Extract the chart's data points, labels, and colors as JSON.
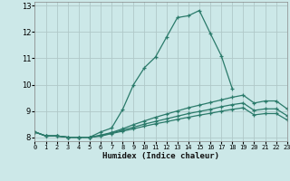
{
  "title": "",
  "xlabel": "Humidex (Indice chaleur)",
  "bg_color": "#cce8e8",
  "grid_color": "#b0c8c8",
  "line_color": "#2a7a6a",
  "xlim": [
    0,
    23
  ],
  "ylim": [
    7.85,
    13.15
  ],
  "xticks": [
    0,
    1,
    2,
    3,
    4,
    5,
    6,
    7,
    8,
    9,
    10,
    11,
    12,
    13,
    14,
    15,
    16,
    17,
    18,
    19,
    20,
    21,
    22,
    23
  ],
  "yticks": [
    8,
    9,
    10,
    11,
    12,
    13
  ],
  "lines": [
    {
      "x": [
        0,
        1,
        2,
        3,
        4,
        5,
        6,
        7,
        8,
        9,
        10,
        11,
        12,
        13,
        14,
        15,
        16,
        17,
        18
      ],
      "y": [
        8.2,
        8.05,
        8.05,
        8.0,
        8.0,
        8.0,
        8.2,
        8.35,
        9.05,
        10.0,
        10.65,
        11.05,
        11.8,
        12.55,
        12.62,
        12.82,
        11.95,
        11.1,
        9.85
      ]
    },
    {
      "x": [
        0,
        1,
        2,
        3,
        4,
        5,
        6,
        7,
        8,
        9,
        10,
        11,
        12,
        13,
        14,
        15,
        16,
        17,
        18,
        19,
        20,
        21,
        22,
        23
      ],
      "y": [
        8.2,
        8.05,
        8.05,
        8.0,
        8.0,
        8.0,
        8.08,
        8.18,
        8.32,
        8.48,
        8.62,
        8.76,
        8.88,
        9.0,
        9.12,
        9.22,
        9.32,
        9.42,
        9.52,
        9.6,
        9.3,
        9.38,
        9.38,
        9.08
      ]
    },
    {
      "x": [
        0,
        1,
        2,
        3,
        4,
        5,
        6,
        7,
        8,
        9,
        10,
        11,
        12,
        13,
        14,
        15,
        16,
        17,
        18,
        19,
        20,
        21,
        22,
        23
      ],
      "y": [
        8.2,
        8.05,
        8.05,
        8.0,
        8.0,
        8.0,
        8.06,
        8.16,
        8.27,
        8.38,
        8.5,
        8.6,
        8.7,
        8.8,
        8.9,
        8.98,
        9.06,
        9.16,
        9.24,
        9.3,
        9.02,
        9.08,
        9.08,
        8.82
      ]
    },
    {
      "x": [
        0,
        1,
        2,
        3,
        4,
        5,
        6,
        7,
        8,
        9,
        10,
        11,
        12,
        13,
        14,
        15,
        16,
        17,
        18,
        19,
        20,
        21,
        22,
        23
      ],
      "y": [
        8.2,
        8.05,
        8.05,
        8.0,
        8.0,
        8.0,
        8.04,
        8.14,
        8.23,
        8.32,
        8.42,
        8.51,
        8.59,
        8.68,
        8.76,
        8.84,
        8.91,
        8.99,
        9.06,
        9.12,
        8.85,
        8.9,
        8.9,
        8.66
      ]
    }
  ]
}
